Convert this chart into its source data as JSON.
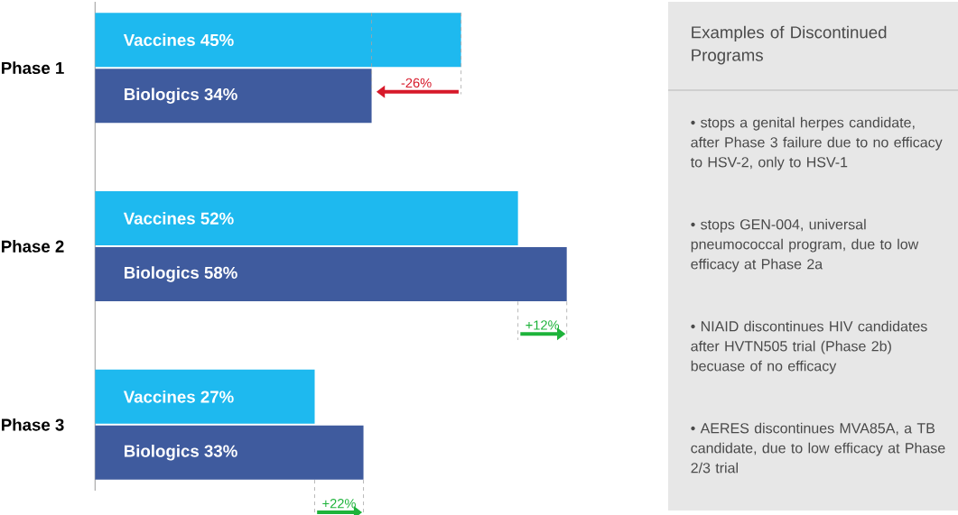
{
  "chart_data": {
    "type": "bar",
    "orientation": "horizontal",
    "categories": [
      "Phase 1",
      "Phase 2",
      "Phase 3"
    ],
    "series": [
      {
        "name": "Vaccines",
        "color": "#1eb9ef",
        "values": [
          45,
          52,
          27
        ],
        "value_labels": [
          "45%",
          "52%",
          "27%"
        ]
      },
      {
        "name": "Biologics",
        "color": "#3f5b9e",
        "values": [
          34,
          58,
          33
        ],
        "value_labels": [
          "34%",
          "58%",
          "33%"
        ]
      }
    ],
    "annotations": [
      "Examples of Discontinued Programs",
      "• stops a genital herpes candidate, after Phase 3 failure due to no efficacy to HSV-2, only to HSV-1",
      "• stops GEN-004, universal pneumococcal program, due to low efficacy at Phase 2a",
      "• NIAID discontinues HIV candidates after HVTN505 trial (Phase 2b) becuase of no efficacy",
      "• AERES discontinues MVA85A, a TB candidate, due to low efficacy at Phase 2/3 trial",
      "-26%",
      "+12%",
      "+22%"
    ]
  }
}
